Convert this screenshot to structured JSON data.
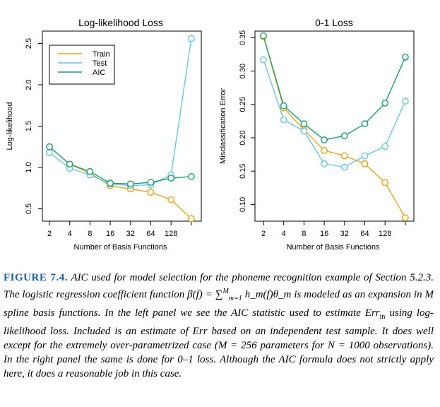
{
  "chart_data": [
    {
      "type": "line",
      "title": "Log-likelihood Loss",
      "xlabel": "Number of Basis Functions",
      "ylabel": "Log-likelihood",
      "categories": [
        "2",
        "4",
        "8",
        "16",
        "32",
        "64",
        "128",
        ""
      ],
      "ylim": [
        0.35,
        2.65
      ],
      "yticks": [
        "0.5",
        "1.0",
        "1.5",
        "2.0",
        "2.5"
      ],
      "ytick_values": [
        0.5,
        1.0,
        1.5,
        2.0,
        2.5
      ],
      "legend_position": "top-left",
      "series": [
        {
          "name": "Train",
          "color": "#E8A317",
          "values": [
            1.25,
            1.04,
            0.93,
            0.78,
            0.74,
            0.7,
            0.61,
            0.38
          ]
        },
        {
          "name": "Test",
          "color": "#6CC4E4",
          "values": [
            1.18,
            0.99,
            0.91,
            0.8,
            0.78,
            0.79,
            0.91,
            2.56
          ]
        },
        {
          "name": "AIC",
          "color": "#1E9E70",
          "values": [
            1.25,
            1.04,
            0.95,
            0.81,
            0.8,
            0.82,
            0.87,
            0.89
          ]
        }
      ]
    },
    {
      "type": "line",
      "title": "0-1 Loss",
      "xlabel": "Number of Basis Functions",
      "ylabel": "Misclassification Error",
      "categories": [
        "2",
        "4",
        "8",
        "16",
        "32",
        "64",
        "128",
        ""
      ],
      "ylim": [
        0.075,
        0.36
      ],
      "yticks": [
        "0.10",
        "0.15",
        "0.20",
        "0.25",
        "0.30",
        "0.35"
      ],
      "ytick_values": [
        0.1,
        0.15,
        0.2,
        0.25,
        0.3,
        0.35
      ],
      "series": [
        {
          "name": "Train",
          "color": "#E8A317",
          "values": [
            0.352,
            0.245,
            0.212,
            0.181,
            0.173,
            0.161,
            0.133,
            0.08
          ]
        },
        {
          "name": "Test",
          "color": "#6CC4E4",
          "values": [
            0.317,
            0.227,
            0.21,
            0.161,
            0.156,
            0.173,
            0.187,
            0.255
          ]
        },
        {
          "name": "AIC",
          "color": "#1E9E70",
          "values": [
            0.353,
            0.248,
            0.221,
            0.197,
            0.203,
            0.221,
            0.252,
            0.321
          ]
        }
      ]
    }
  ],
  "caption": {
    "label": "FIGURE 7.4.",
    "part1": "AIC used for model selection for the phoneme recognition example of Section 5.2.3. The logistic regression coefficient function ",
    "formula_beta": "β(f) = ∑",
    "formula_sup": "M",
    "formula_sub": "m=1",
    "formula_rest": " h_m(f)θ_m",
    "part2": " is modeled as an expansion in M spline basis functions. In the left panel we see the AIC statistic used to estimate Err",
    "err_sub": "in",
    "part3": " using log-likelihood loss. Included is an estimate of Err based on an independent test sample. It does well except for the extremely over-parametrized case (M = 256 parameters for N = 1000 observations). In the right panel the same is done for 0–1 loss. Although the AIC formula does not strictly apply here, it does a reasonable job in this case."
  }
}
